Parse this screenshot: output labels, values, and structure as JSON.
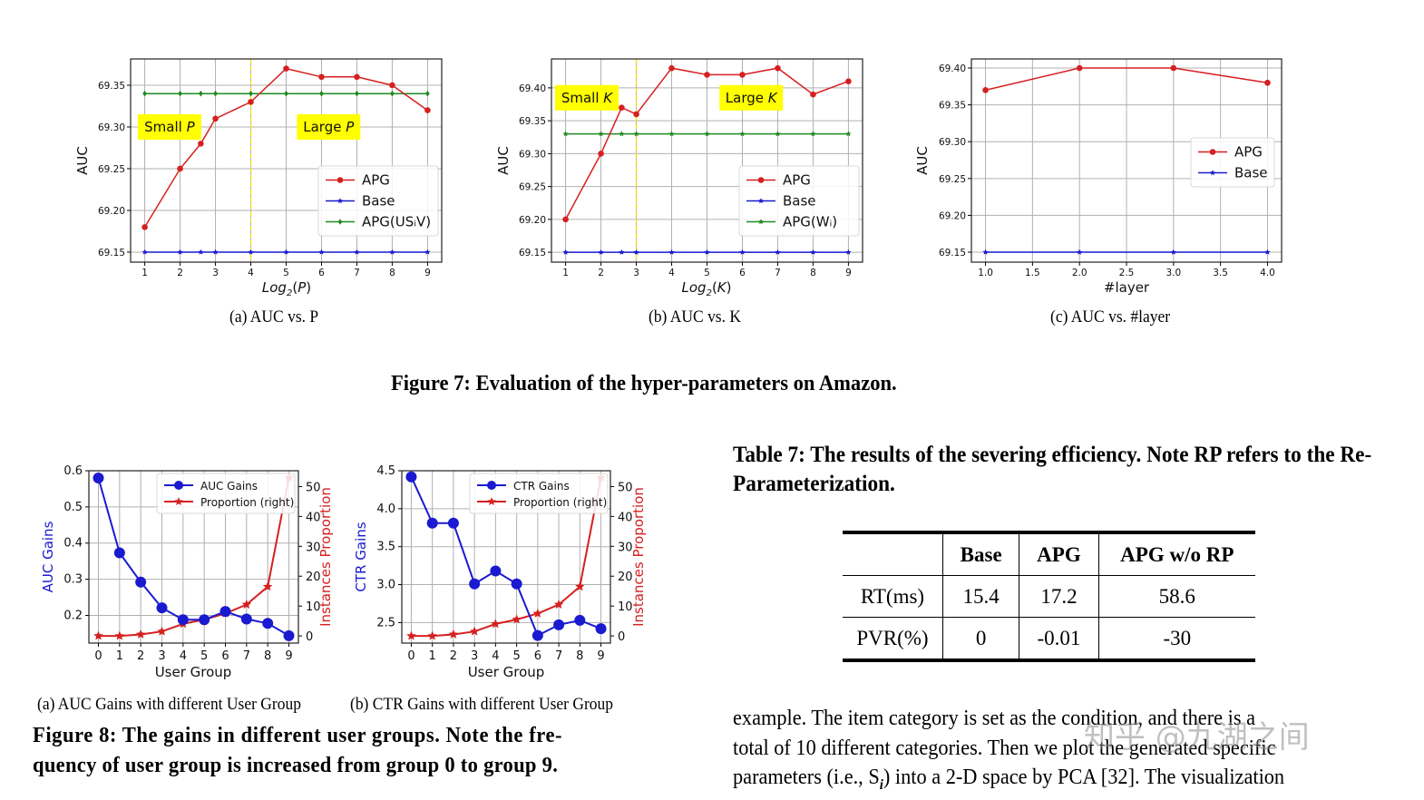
{
  "figure7": {
    "caption": "Figure 7: Evaluation of the hyper-parameters on Amazon.",
    "subcaptions": [
      "(a)  AUC vs. P",
      "(b)  AUC vs. K",
      "(c)  AUC vs. #layer"
    ]
  },
  "figure8": {
    "subcaptions": [
      "(a)  AUC Gains with different User Group",
      "(b)  CTR Gains with different User Group"
    ],
    "caption_line1": "Figure 8: The gains in different user groups. Note the fre-",
    "caption_line2": "quency of user group is increased from group 0 to group 9."
  },
  "table7": {
    "caption": "Table 7: The results of the severing efficiency. Note RP refers to the Re-Parameterization.",
    "headers": [
      "",
      "Base",
      "APG",
      "APG w/o RP"
    ],
    "rows": [
      [
        "RT(ms)",
        "15.4",
        "17.2",
        "58.6"
      ],
      [
        "PVR(%)",
        "0",
        "-0.01",
        "-30"
      ]
    ]
  },
  "body_text": {
    "lines": [
      "example. The item category is set as the condition, and there is a",
      "total of 10 different categories. Then we plot the generated specific",
      "parameters (i.e., S",
      ") into a 2-D space by PCA [32]. The visualization"
    ],
    "subscript": "i"
  },
  "watermark": "知乎 @九湖之间",
  "colors": {
    "red": "#d62020",
    "blue": "#1a1ad0",
    "green": "#1f8a1f",
    "yellow": "#ffff00",
    "grid": "#b0b0b0"
  },
  "chart_data": [
    {
      "id": "fig7a",
      "type": "line",
      "title": "(a) AUC vs. P",
      "xlabel": "Log2(P)",
      "ylabel": "AUC",
      "xlim": [
        0.6,
        9.4
      ],
      "ylim": [
        69.138,
        69.3815
      ],
      "xticks": [
        1,
        2,
        3,
        4,
        5,
        6,
        7,
        8,
        9
      ],
      "yticks": [
        69.15,
        69.2,
        69.25,
        69.3,
        69.35
      ],
      "ytick_labels": [
        "69.15",
        "69.20",
        "69.25",
        "69.30",
        "69.35"
      ],
      "grid": true,
      "legend_position": "center right",
      "vline": 4,
      "annotations": [
        {
          "text": "Small P",
          "x": 1.7,
          "y": 69.3
        },
        {
          "text": "Large P",
          "x": 6.2,
          "y": 69.3
        }
      ],
      "series": [
        {
          "name": "APG",
          "color": "#d62020",
          "marker": "circle",
          "x": [
            1,
            2,
            2.585,
            3,
            4,
            5,
            6,
            7,
            8,
            9
          ],
          "values": [
            69.18,
            69.25,
            69.28,
            69.31,
            69.33,
            69.37,
            69.36,
            69.36,
            69.35,
            69.32
          ]
        },
        {
          "name": "Base",
          "color": "#1a1ad0",
          "marker": "star",
          "x": [
            1,
            2,
            2.585,
            3,
            4,
            5,
            6,
            7,
            8,
            9
          ],
          "values": [
            69.15,
            69.15,
            69.15,
            69.15,
            69.15,
            69.15,
            69.15,
            69.15,
            69.15,
            69.15
          ]
        },
        {
          "name": "APG(USᵢV)",
          "color": "#1f8a1f",
          "marker": "diamond",
          "x": [
            1,
            2,
            2.585,
            3,
            4,
            5,
            6,
            7,
            8,
            9
          ],
          "values": [
            69.34,
            69.34,
            69.34,
            69.34,
            69.34,
            69.34,
            69.34,
            69.34,
            69.34,
            69.34
          ]
        }
      ]
    },
    {
      "id": "fig7b",
      "type": "line",
      "title": "(b) AUC vs. K",
      "xlabel": "Log2(K)",
      "ylabel": "AUC",
      "xlim": [
        0.6,
        9.4
      ],
      "ylim": [
        69.135,
        69.444
      ],
      "xticks": [
        1,
        2,
        3,
        4,
        5,
        6,
        7,
        8,
        9
      ],
      "yticks": [
        69.15,
        69.2,
        69.25,
        69.3,
        69.35,
        69.4
      ],
      "ytick_labels": [
        "69.15",
        "69.20",
        "69.25",
        "69.30",
        "69.35",
        "69.40"
      ],
      "grid": true,
      "legend_position": "center right",
      "vline": 3,
      "annotations": [
        {
          "text": "Small K",
          "x": 1.6,
          "y": 69.385
        },
        {
          "text": "Large K",
          "x": 6.25,
          "y": 69.385
        }
      ],
      "series": [
        {
          "name": "APG",
          "color": "#d62020",
          "marker": "circle",
          "x": [
            1,
            2,
            2.585,
            3,
            4,
            5,
            6,
            7,
            8,
            9
          ],
          "values": [
            69.2,
            69.3,
            69.37,
            69.36,
            69.43,
            69.42,
            69.42,
            69.43,
            69.39,
            69.41
          ]
        },
        {
          "name": "Base",
          "color": "#1a1ad0",
          "marker": "star",
          "x": [
            1,
            2,
            2.585,
            3,
            4,
            5,
            6,
            7,
            8,
            9
          ],
          "values": [
            69.15,
            69.15,
            69.15,
            69.15,
            69.15,
            69.15,
            69.15,
            69.15,
            69.15,
            69.15
          ]
        },
        {
          "name": "APG(Wᵢ)",
          "color": "#1f8a1f",
          "marker": "star",
          "x": [
            1,
            2,
            2.585,
            3,
            4,
            5,
            6,
            7,
            8,
            9
          ],
          "values": [
            69.33,
            69.33,
            69.33,
            69.33,
            69.33,
            69.33,
            69.33,
            69.33,
            69.33,
            69.33
          ]
        }
      ]
    },
    {
      "id": "fig7c",
      "type": "line",
      "title": "(c) AUC vs. #layer",
      "xlabel": "#layer",
      "ylabel": "AUC",
      "xlim": [
        0.85,
        4.15
      ],
      "ylim": [
        69.1365,
        69.4123
      ],
      "xticks": [
        1.0,
        1.5,
        2.0,
        2.5,
        3.0,
        3.5,
        4.0
      ],
      "xtick_labels": [
        "1.0",
        "1.5",
        "2.0",
        "2.5",
        "3.0",
        "3.5",
        "4.0"
      ],
      "yticks": [
        69.15,
        69.2,
        69.25,
        69.3,
        69.35,
        69.4
      ],
      "ytick_labels": [
        "69.15",
        "69.20",
        "69.25",
        "69.30",
        "69.35",
        "69.40"
      ],
      "grid": true,
      "legend_position": "center right",
      "series": [
        {
          "name": "APG",
          "color": "#d62020",
          "marker": "circle",
          "x": [
            1,
            2,
            3,
            4
          ],
          "values": [
            69.37,
            69.4,
            69.4,
            69.38
          ]
        },
        {
          "name": "Base",
          "color": "#1a1ad0",
          "marker": "star",
          "x": [
            1,
            2,
            3,
            4
          ],
          "values": [
            69.15,
            69.15,
            69.15,
            69.15
          ]
        }
      ]
    },
    {
      "id": "fig8a",
      "type": "line",
      "title": "(a) AUC Gains with different User Group",
      "xlabel": "User Group",
      "ylabel": "AUC Gains",
      "ylabel_right": "Instances Proportion",
      "xlim": [
        -0.45,
        9.45
      ],
      "ylim": [
        0.1235,
        0.6
      ],
      "ylim_right": [
        -2.4,
        55.3
      ],
      "xticks": [
        0,
        1,
        2,
        3,
        4,
        5,
        6,
        7,
        8,
        9
      ],
      "yticks": [
        0.2,
        0.3,
        0.4,
        0.5,
        0.6
      ],
      "ytick_labels": [
        "0.2",
        "0.3",
        "0.4",
        "0.5",
        "0.6"
      ],
      "yticks_right": [
        0,
        10,
        20,
        30,
        40,
        50
      ],
      "grid": true,
      "legend_position": "upper right",
      "series": [
        {
          "name": "AUC Gains",
          "color": "#1a1ad0",
          "marker": "circle",
          "axis": "left",
          "x": [
            0,
            1,
            2,
            3,
            4,
            5,
            6,
            7,
            8,
            9
          ],
          "values": [
            0.58,
            0.373,
            0.292,
            0.221,
            0.188,
            0.188,
            0.211,
            0.19,
            0.178,
            0.144
          ]
        },
        {
          "name": "Proportion (right)",
          "color": "#d62020",
          "marker": "star",
          "axis": "right",
          "x": [
            0,
            1,
            2,
            3,
            4,
            5,
            6,
            7,
            8,
            9
          ],
          "values": [
            0,
            0,
            0.5,
            1.5,
            4,
            5.5,
            7.5,
            10.5,
            16.5,
            53
          ]
        }
      ]
    },
    {
      "id": "fig8b",
      "type": "line",
      "title": "(b) CTR Gains with different User Group",
      "xlabel": "User Group",
      "ylabel": "CTR Gains",
      "ylabel_right": "Instances Proportion",
      "xlim": [
        -0.45,
        9.45
      ],
      "ylim": [
        2.23,
        4.5
      ],
      "ylim_right": [
        -2.4,
        55.3
      ],
      "xticks": [
        0,
        1,
        2,
        3,
        4,
        5,
        6,
        7,
        8,
        9
      ],
      "yticks": [
        2.5,
        3.0,
        3.5,
        4.0,
        4.5
      ],
      "ytick_labels": [
        "2.5",
        "3.0",
        "3.5",
        "4.0",
        "4.5"
      ],
      "yticks_right": [
        0,
        10,
        20,
        30,
        40,
        50
      ],
      "grid": true,
      "legend_position": "upper right",
      "series": [
        {
          "name": "CTR Gains",
          "color": "#1a1ad0",
          "marker": "circle",
          "axis": "left",
          "x": [
            0,
            1,
            2,
            3,
            4,
            5,
            6,
            7,
            8,
            9
          ],
          "values": [
            4.42,
            3.81,
            3.81,
            3.01,
            3.18,
            3.01,
            2.33,
            2.47,
            2.53,
            2.42
          ]
        },
        {
          "name": "Proportion (right)",
          "color": "#d62020",
          "marker": "star",
          "axis": "right",
          "x": [
            0,
            1,
            2,
            3,
            4,
            5,
            6,
            7,
            8,
            9
          ],
          "values": [
            0,
            0,
            0.5,
            1.5,
            4,
            5.5,
            7.5,
            10.5,
            16.5,
            53
          ]
        }
      ]
    }
  ]
}
